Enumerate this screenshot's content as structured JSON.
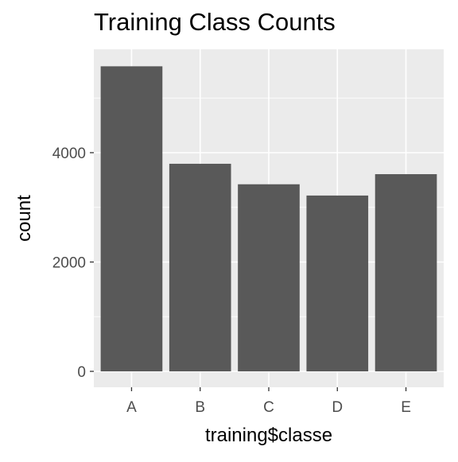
{
  "chart_data": {
    "type": "bar",
    "title": "Training Class Counts",
    "xlabel": "training$classe",
    "ylabel": "count",
    "categories": [
      "A",
      "B",
      "C",
      "D",
      "E"
    ],
    "values": [
      5580,
      3797,
      3422,
      3216,
      3607
    ],
    "ylim": [
      0,
      5860
    ],
    "yticks": [
      0,
      2000,
      4000
    ],
    "grid": true,
    "legend": "none",
    "colors": {
      "bar": "#595959",
      "panel": "#ebebeb",
      "grid": "#ffffff",
      "tick": "#4d4d4d",
      "text": "#000000"
    }
  }
}
